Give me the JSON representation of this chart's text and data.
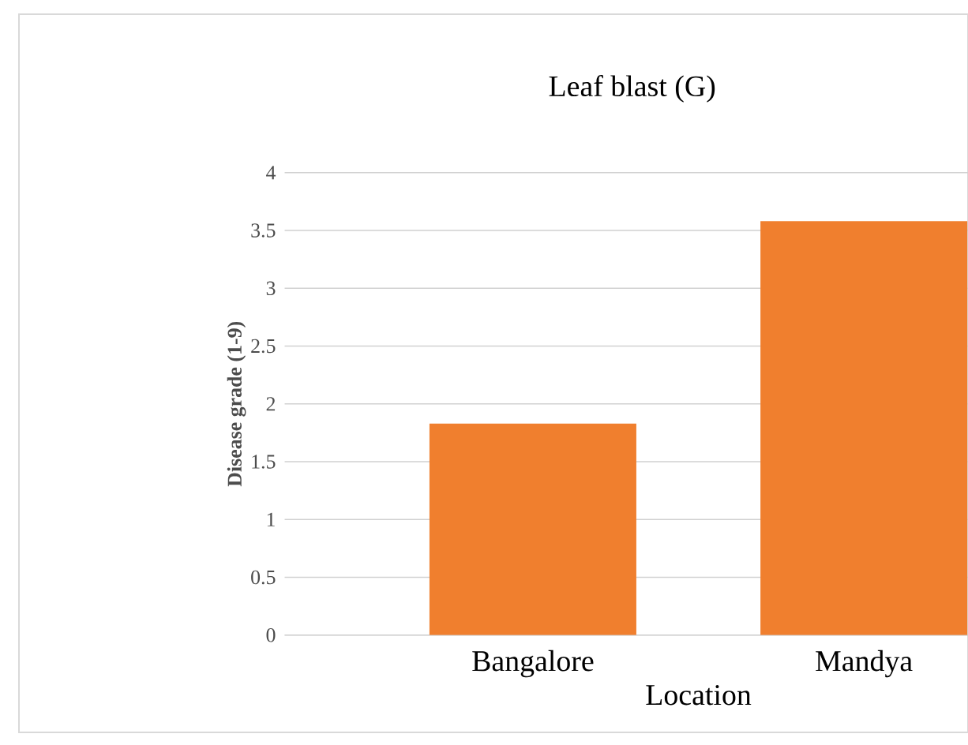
{
  "chart_data": {
    "type": "bar",
    "title": "Leaf blast (G)",
    "xlabel": "Location",
    "ylabel": "Disease grade (1-9)",
    "categories": [
      "Bangalore",
      "Mandya"
    ],
    "values": [
      1.83,
      3.58
    ],
    "color": "#f07f2e",
    "ylim": [
      0,
      4
    ],
    "yticks": [
      0,
      0.5,
      1,
      1.5,
      2,
      2.5,
      3,
      3.5,
      4
    ],
    "grid": "y"
  }
}
